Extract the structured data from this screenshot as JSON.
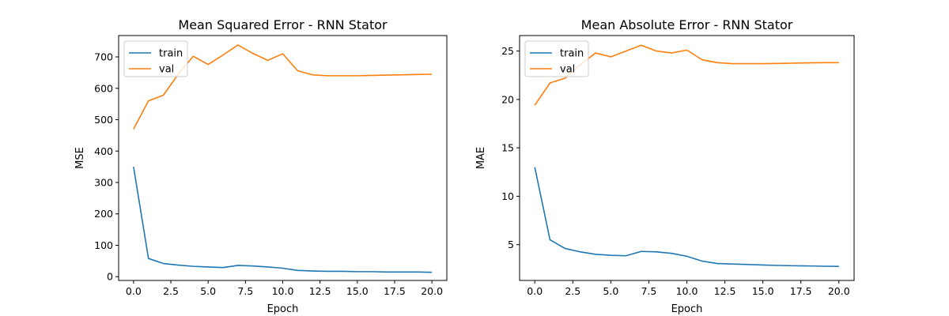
{
  "chart_data": [
    {
      "type": "line",
      "title": "Mean Squared Error - RNN Stator",
      "xlabel": "Epoch",
      "ylabel": "MSE",
      "xlim": [
        -1,
        21
      ],
      "ylim": [
        -12,
        768
      ],
      "xticks": [
        0,
        2.5,
        5,
        7.5,
        10,
        12.5,
        15,
        17.5,
        20
      ],
      "xtick_labels": [
        "0.0",
        "2.5",
        "5.0",
        "7.5",
        "10.0",
        "12.5",
        "15.0",
        "17.5",
        "20.0"
      ],
      "yticks": [
        0,
        100,
        200,
        300,
        400,
        500,
        600,
        700
      ],
      "ytick_labels": [
        "0",
        "100",
        "200",
        "300",
        "400",
        "500",
        "600",
        "700"
      ],
      "legend": "top-left",
      "grid": false,
      "x": [
        0,
        1,
        2,
        3,
        4,
        5,
        6,
        7,
        8,
        9,
        10,
        11,
        12,
        13,
        14,
        15,
        16,
        17,
        18,
        19,
        20
      ],
      "series": [
        {
          "name": "train",
          "color": "#1f77b4",
          "values": [
            350,
            58,
            42,
            37,
            33,
            31,
            29,
            36,
            34,
            31,
            27,
            20,
            18,
            17,
            17,
            16,
            16,
            15,
            15,
            15,
            14
          ]
        },
        {
          "name": "val",
          "color": "#ff7f0e",
          "values": [
            470,
            560,
            578,
            645,
            702,
            676,
            706,
            738,
            711,
            689,
            710,
            656,
            643,
            640,
            640,
            640,
            641,
            642,
            643,
            644,
            645
          ]
        }
      ]
    },
    {
      "type": "line",
      "title": "Mean Absolute Error - RNN Stator",
      "xlabel": "Epoch",
      "ylabel": "MAE",
      "xlim": [
        -1,
        21
      ],
      "ylim": [
        1.3,
        26.6
      ],
      "xticks": [
        0,
        2.5,
        5,
        7.5,
        10,
        12.5,
        15,
        17.5,
        20
      ],
      "xtick_labels": [
        "0.0",
        "2.5",
        "5.0",
        "7.5",
        "10.0",
        "12.5",
        "15.0",
        "17.5",
        "20.0"
      ],
      "yticks": [
        5,
        10,
        15,
        20,
        25
      ],
      "ytick_labels": [
        "5",
        "10",
        "15",
        "20",
        "25"
      ],
      "legend": "top-left",
      "grid": false,
      "x": [
        0,
        1,
        2,
        3,
        4,
        5,
        6,
        7,
        8,
        9,
        10,
        11,
        12,
        13,
        14,
        15,
        16,
        17,
        18,
        19,
        20
      ],
      "series": [
        {
          "name": "train",
          "color": "#1f77b4",
          "values": [
            13.0,
            5.5,
            4.6,
            4.25,
            4.0,
            3.9,
            3.85,
            4.3,
            4.25,
            4.1,
            3.8,
            3.3,
            3.05,
            3.0,
            2.95,
            2.9,
            2.85,
            2.82,
            2.8,
            2.77,
            2.75
          ]
        },
        {
          "name": "val",
          "color": "#ff7f0e",
          "values": [
            19.4,
            21.7,
            22.2,
            23.6,
            24.8,
            24.4,
            25.0,
            25.6,
            25.0,
            24.8,
            25.1,
            24.1,
            23.8,
            23.7,
            23.7,
            23.7,
            23.72,
            23.75,
            23.78,
            23.8,
            23.8
          ]
        }
      ]
    }
  ]
}
